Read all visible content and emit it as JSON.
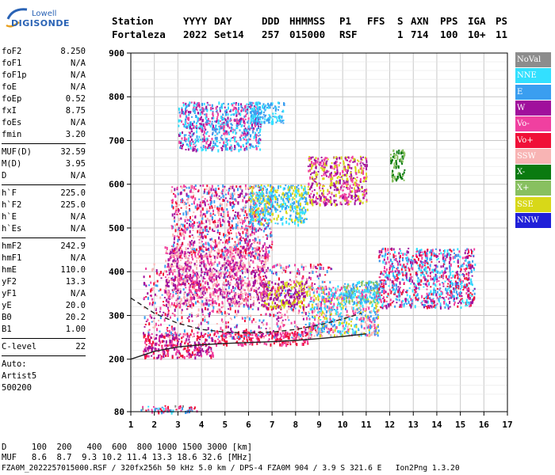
{
  "logo": {
    "line1": "Lowell",
    "line2": "DIGISONDE"
  },
  "header": {
    "labels": [
      "Station",
      "YYYY",
      "DAY",
      "DDD",
      "HHMMSS",
      "P1",
      "FFS",
      "S",
      "AXN",
      "PPS",
      "IGA",
      "PS"
    ],
    "values": [
      "Fortaleza",
      "2022",
      "Set14",
      "257",
      "015000",
      "RSF",
      "1",
      "714",
      "100",
      "10+",
      "11"
    ]
  },
  "params": {
    "group1": [
      {
        "name": "foF2",
        "value": "8.250"
      },
      {
        "name": "foF1",
        "value": "N/A"
      },
      {
        "name": "foF1p",
        "value": "N/A"
      },
      {
        "name": "foE",
        "value": "N/A"
      },
      {
        "name": "foEp",
        "value": "0.52"
      },
      {
        "name": "fxI",
        "value": "8.75"
      },
      {
        "name": "foEs",
        "value": "N/A"
      },
      {
        "name": "fmin",
        "value": "3.20"
      }
    ],
    "group2": [
      {
        "name": "MUF(D)",
        "value": "32.59"
      },
      {
        "name": "M(D)",
        "value": "3.95"
      },
      {
        "name": "D",
        "value": "N/A"
      }
    ],
    "group3": [
      {
        "name": "h`F",
        "value": "225.0"
      },
      {
        "name": "h`F2",
        "value": "225.0"
      },
      {
        "name": "h`E",
        "value": "N/A"
      },
      {
        "name": "h`Es",
        "value": "N/A"
      }
    ],
    "group4": [
      {
        "name": "hmF2",
        "value": "242.9"
      },
      {
        "name": "hmF1",
        "value": "N/A"
      },
      {
        "name": "hmE",
        "value": "110.0"
      },
      {
        "name": "yF2",
        "value": "13.3"
      },
      {
        "name": "yF1",
        "value": "N/A"
      },
      {
        "name": "yE",
        "value": "20.0"
      },
      {
        "name": "B0",
        "value": "20.2"
      },
      {
        "name": "B1",
        "value": "1.00"
      }
    ],
    "group5": [
      {
        "name": "C-level",
        "value": "22"
      }
    ],
    "auto": [
      "Auto:",
      "Artist5",
      "500200"
    ]
  },
  "legend": [
    {
      "label": "NoVal",
      "color": "#8c8c8c"
    },
    {
      "label": "NNE",
      "color": "#33e0ff"
    },
    {
      "label": "E",
      "color": "#3a9ef0"
    },
    {
      "label": "W",
      "color": "#a0109c"
    },
    {
      "label": "Vo-",
      "color": "#f040a0"
    },
    {
      "label": "Vo+",
      "color": "#f01038"
    },
    {
      "label": "SSW",
      "color": "#f8b4b4"
    },
    {
      "label": "X-",
      "color": "#0a7a10"
    },
    {
      "label": "X+",
      "color": "#88c060"
    },
    {
      "label": "SSE",
      "color": "#d8d818"
    },
    {
      "label": "NNW",
      "color": "#2020d8"
    }
  ],
  "footer": {
    "d_row": "D     100  200   400  600  800 1000 1500 3000 [km]",
    "muf_row": "MUF   8.6  8.7  9.3 10.2 11.4 13.3 18.6 32.6 [MHz]",
    "info": "FZA0M_2022257015000.RSF / 320fx256h 50 kHz 5.0 km / DPS-4 FZA0M 904 / 3.9 S 321.6 E   Ion2Png 1.3.20"
  },
  "chart_data": {
    "type": "scatter",
    "x_ticks": [
      "1",
      "2",
      "3",
      "4",
      "5",
      "6",
      "7",
      "8",
      "9",
      "10",
      "11",
      "12",
      "13",
      "14",
      "15",
      "16",
      "17"
    ],
    "y_ticks": [
      "80",
      "200",
      "300",
      "400",
      "500",
      "600",
      "700",
      "800",
      "900"
    ],
    "xlim": [
      1,
      17
    ],
    "ylim": [
      80,
      900
    ],
    "grid": true,
    "legend_position": "right",
    "echo_regions": [
      {
        "x": [
          1.4,
          3.8
        ],
        "y": [
          80,
          95
        ],
        "colors": [
          "NNE",
          "E",
          "Vo+",
          "Vo-",
          "NoVal"
        ]
      },
      {
        "x": [
          1.5,
          4.5
        ],
        "y": [
          205,
          260
        ],
        "colors": [
          "Vo+",
          "Vo-",
          "W"
        ]
      },
      {
        "x": [
          4.5,
          8.5
        ],
        "y": [
          235,
          265
        ],
        "colors": [
          "Vo+",
          "Vo-"
        ]
      },
      {
        "x": [
          1.5,
          9.5
        ],
        "y": [
          250,
          420
        ],
        "colors": [
          "W",
          "Vo-",
          "Vo+",
          "E",
          "SSW"
        ]
      },
      {
        "x": [
          8.5,
          11.5
        ],
        "y": [
          255,
          370
        ],
        "colors": [
          "SSW",
          "E",
          "NNE",
          "Vo-",
          "SSE"
        ]
      },
      {
        "x": [
          10,
          11.5
        ],
        "y": [
          330,
          380
        ],
        "colors": [
          "NNE",
          "E",
          "X+"
        ]
      },
      {
        "x": [
          6.5,
          8.5
        ],
        "y": [
          320,
          380
        ],
        "colors": [
          "SSE",
          "W"
        ]
      },
      {
        "x": [
          11.5,
          15.6
        ],
        "y": [
          320,
          455
        ],
        "colors": [
          "E",
          "NNE",
          "W",
          "Vo-",
          "Vo+"
        ]
      },
      {
        "x": [
          2.4,
          6.8
        ],
        "y": [
          325,
          460
        ],
        "colors": [
          "W",
          "Vo-",
          "SSW"
        ]
      },
      {
        "x": [
          2.7,
          7
        ],
        "y": [
          435,
          600
        ],
        "colors": [
          "W",
          "Vo-",
          "Vo+",
          "E",
          "SSW"
        ]
      },
      {
        "x": [
          6,
          8.5
        ],
        "y": [
          510,
          600
        ],
        "colors": [
          "E",
          "NNE",
          "SSE"
        ]
      },
      {
        "x": [
          8.5,
          11
        ],
        "y": [
          555,
          665
        ],
        "colors": [
          "SSE",
          "Vo-",
          "W"
        ]
      },
      {
        "x": [
          12,
          12.6
        ],
        "y": [
          610,
          680
        ],
        "colors": [
          "X-",
          "X+"
        ]
      },
      {
        "x": [
          3,
          6.5
        ],
        "y": [
          680,
          790
        ],
        "colors": [
          "E",
          "NNE",
          "Vo-",
          "W"
        ]
      },
      {
        "x": [
          6,
          7.5
        ],
        "y": [
          740,
          790
        ],
        "colors": [
          "E",
          "NNE"
        ]
      }
    ],
    "profile_curves": [
      {
        "points": [
          [
            1,
            200
          ],
          [
            2,
            218
          ],
          [
            3,
            228
          ],
          [
            4,
            233
          ],
          [
            5,
            236
          ],
          [
            6,
            238
          ],
          [
            7,
            240
          ],
          [
            8,
            243
          ],
          [
            9,
            247
          ],
          [
            10,
            252
          ],
          [
            11,
            258
          ]
        ],
        "style": "solid"
      },
      {
        "points": [
          [
            1,
            340
          ],
          [
            2,
            305
          ],
          [
            3,
            282
          ],
          [
            4,
            268
          ],
          [
            5,
            262
          ],
          [
            6,
            260
          ],
          [
            7,
            262
          ],
          [
            8,
            268
          ],
          [
            9,
            278
          ],
          [
            10,
            292
          ],
          [
            10.8,
            305
          ]
        ],
        "style": "dashed"
      }
    ]
  }
}
